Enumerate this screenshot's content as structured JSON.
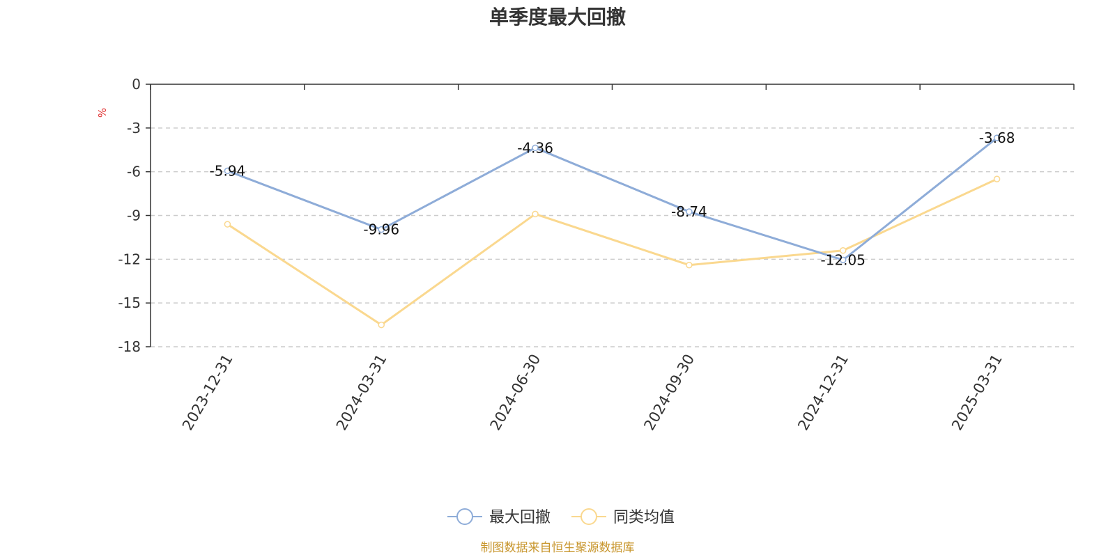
{
  "chart_data": {
    "type": "line",
    "title": "单季度最大回撤",
    "ylabel": "%",
    "ylim": [
      -18,
      0
    ],
    "yticks": [
      0,
      -3,
      -6,
      -9,
      -12,
      -15,
      -18
    ],
    "grid": true,
    "legend_position": "bottom",
    "categories": [
      "2023-12-31",
      "2024-03-31",
      "2024-06-30",
      "2024-09-30",
      "2024-12-31",
      "2025-03-31"
    ],
    "series": [
      {
        "name": "最大回撤",
        "color": "#8eacd8",
        "values": [
          -5.94,
          -9.96,
          -4.36,
          -8.74,
          -12.05,
          -3.68
        ],
        "labels": [
          "-5.94",
          "-9.96",
          "-4.36",
          "-8.74",
          "-12.05",
          "-3.68"
        ],
        "show_labels": true
      },
      {
        "name": "同类均值",
        "color": "#fad88f",
        "values": [
          -9.6,
          -16.5,
          -8.9,
          -12.4,
          -11.4,
          -6.5
        ],
        "show_labels": false
      }
    ],
    "source": "制图数据来自恒生聚源数据库",
    "source_color": "#c8962d",
    "unit_color": "#e03030"
  }
}
